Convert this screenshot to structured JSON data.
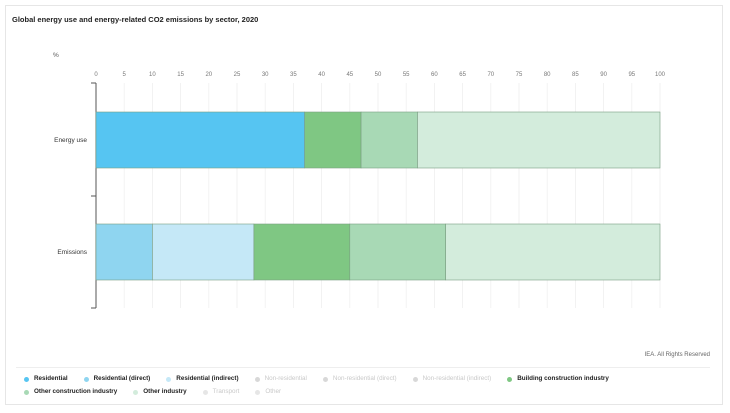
{
  "chart_data": {
    "type": "bar",
    "orientation": "horizontal",
    "stacked": true,
    "title": "Global energy use and energy-related CO2 emissions by sector, 2020",
    "unit_label": "%",
    "categories": [
      "Energy use",
      "Emissions"
    ],
    "xlim": [
      0,
      100
    ],
    "xticks": [
      0,
      5,
      10,
      15,
      20,
      25,
      30,
      35,
      40,
      45,
      50,
      55,
      60,
      65,
      70,
      75,
      80,
      85,
      90,
      95,
      100
    ],
    "series": [
      {
        "name": "Residential",
        "color": "#56c5f2",
        "values": [
          37,
          0
        ]
      },
      {
        "name": "Residential (direct)",
        "color": "#8fd5f0",
        "values": [
          0,
          10
        ]
      },
      {
        "name": "Residential (indirect)",
        "color": "#c5e8f7",
        "values": [
          0,
          18
        ]
      },
      {
        "name": "Non-residential",
        "color": "#b8c9d6",
        "values": [
          0,
          0
        ]
      },
      {
        "name": "Non-residential (direct)",
        "color": "#c8d8e2",
        "values": [
          0,
          0
        ]
      },
      {
        "name": "Non-residential (indirect)",
        "color": "#dce7ee",
        "values": [
          0,
          0
        ]
      },
      {
        "name": "Building construction industry",
        "color": "#7fc783",
        "values": [
          10,
          17
        ]
      },
      {
        "name": "Other construction industry",
        "color": "#a8d9b5",
        "values": [
          10,
          17
        ]
      },
      {
        "name": "Other industry",
        "color": "#d3ecdc",
        "values": [
          43,
          38
        ]
      },
      {
        "name": "Transport",
        "color": "#e2e2e2",
        "values": [
          0,
          0
        ]
      },
      {
        "name": "Other",
        "color": "#ececec",
        "values": [
          0,
          0
        ]
      }
    ],
    "grid": true,
    "legend_position": "bottom"
  },
  "legend": [
    {
      "label": "Residential",
      "color": "#56c5f2",
      "active": true
    },
    {
      "label": "Residential (direct)",
      "color": "#8fd5f0",
      "active": true
    },
    {
      "label": "Residential (indirect)",
      "color": "#c5e8f7",
      "active": true
    },
    {
      "label": "Non-residential",
      "color": "#d8d8d8",
      "active": false
    },
    {
      "label": "Non-residential (direct)",
      "color": "#d8d8d8",
      "active": false
    },
    {
      "label": "Non-residential (indirect)",
      "color": "#d8d8d8",
      "active": false
    },
    {
      "label": "Building construction industry",
      "color": "#7fc783",
      "active": true
    },
    {
      "label": "Other construction industry",
      "color": "#a8d9b5",
      "active": true
    },
    {
      "label": "Other industry",
      "color": "#d3ecdc",
      "active": true
    },
    {
      "label": "Transport",
      "color": "#e6e6e6",
      "active": false
    },
    {
      "label": "Other",
      "color": "#e6e6e6",
      "active": false
    }
  ],
  "copyright": "IEA. All Rights Reserved"
}
